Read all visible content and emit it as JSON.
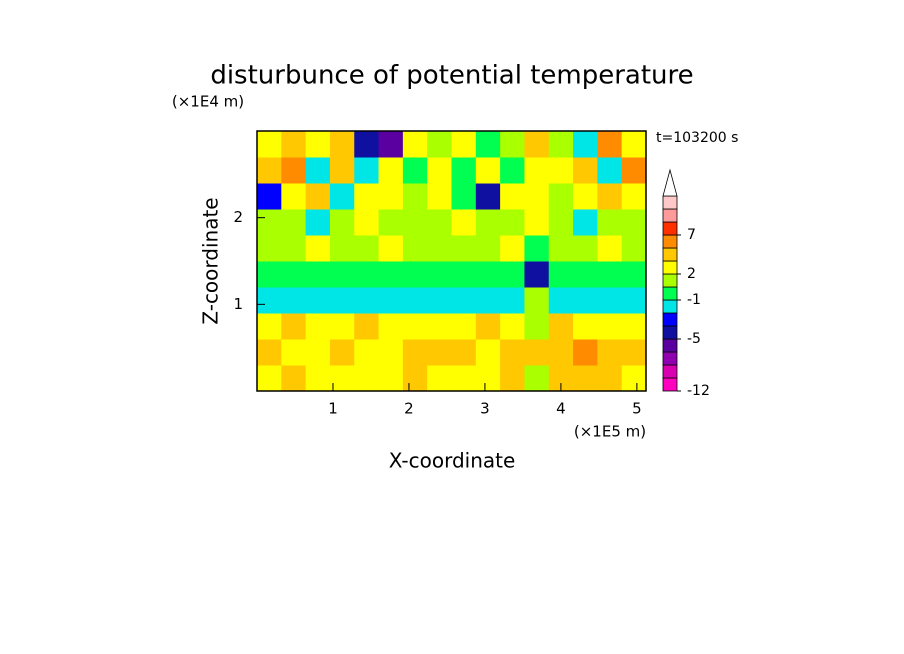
{
  "chart_data": {
    "type": "contour",
    "title": "disturbunce of potential temperature",
    "ylabel_unit": "(×1E4 m)",
    "xlabel_unit": "(×1E5 m)",
    "xlabel": "X-coordinate",
    "ylabel": "Z-coordinate",
    "annotation": "t=103200 s",
    "xlim": [
      0,
      5.12
    ],
    "xticks": [
      1,
      2,
      3,
      4,
      5
    ],
    "ylim": [
      0,
      3
    ],
    "yticks": [
      1,
      2
    ],
    "z": [
      [
        2,
        3,
        2,
        2,
        2,
        2,
        3,
        2,
        2,
        2,
        3,
        0.5,
        4,
        4,
        4,
        2
      ],
      [
        3,
        2,
        2,
        3,
        2,
        2,
        3,
        4,
        3,
        2,
        3,
        4,
        4,
        5,
        4,
        3
      ],
      [
        2,
        3,
        2,
        2,
        3,
        2,
        2,
        2,
        2,
        3,
        2,
        1,
        3,
        2,
        2,
        2
      ],
      [
        -1.5,
        -1.5,
        -1.5,
        -1.5,
        -1.5,
        -1.5,
        -1.5,
        -1.5,
        -1.5,
        -1.5,
        -1.5,
        0.5,
        -1.5,
        -1.5,
        -1.5,
        -1.5
      ],
      [
        -0.5,
        -0.5,
        -0.5,
        -0.5,
        -0.5,
        -0.5,
        -0.5,
        -0.5,
        -0.5,
        -0.5,
        -0.5,
        -5,
        -0.5,
        -0.5,
        -0.5,
        -0.5
      ],
      [
        1,
        1,
        2,
        1,
        1,
        2,
        1,
        1,
        1,
        1,
        2,
        -0.5,
        1,
        1,
        2,
        1
      ],
      [
        1,
        0.5,
        -1.5,
        1,
        2,
        1,
        1,
        1,
        2,
        1,
        1,
        2,
        1,
        -1.5,
        1,
        0.5
      ],
      [
        -3,
        2,
        4,
        -1.5,
        2,
        2,
        1,
        2,
        -0.5,
        -4.5,
        2,
        2,
        1,
        2,
        4,
        2
      ],
      [
        4,
        6,
        -1.5,
        4,
        -1.5,
        2,
        -0.5,
        2,
        -0.5,
        2,
        -0.5,
        2,
        2,
        4,
        -1.5,
        6
      ],
      [
        2,
        4,
        2,
        3,
        -4.5,
        -5.5,
        2,
        1,
        2,
        -0.5,
        1,
        4,
        1,
        -1.5,
        6,
        2
      ]
    ],
    "colorbar": {
      "levels": [
        -12,
        -10,
        -8,
        -6,
        -5,
        -4,
        -2,
        -1,
        0,
        2,
        3,
        5,
        7,
        9,
        11,
        13
      ],
      "colors": [
        "#ff00c0",
        "#d800b0",
        "#9000b0",
        "#5a00a0",
        "#1010a0",
        "#0000ff",
        "#00e6e6",
        "#00ff50",
        "#aaff00",
        "#ffff00",
        "#ffc800",
        "#ff8c00",
        "#ff3000",
        "#ff9a9a",
        "#ffc8c8"
      ],
      "ticks": [
        -12,
        -5,
        -1,
        2,
        7
      ]
    }
  }
}
